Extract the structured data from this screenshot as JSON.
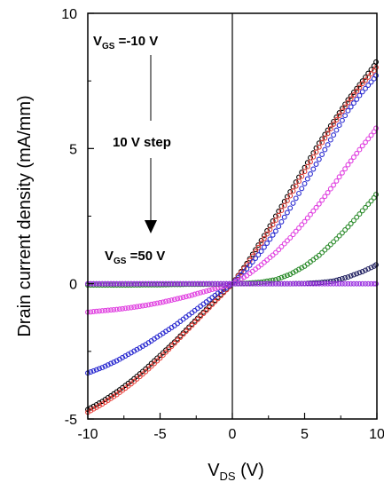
{
  "chart_data": {
    "type": "scatter",
    "title": "",
    "xlabel": "V",
    "xlabel_sub": "DS",
    "xlabel_unit": " (V)",
    "ylabel": "Drain current density (mA/mm)",
    "xlim": [
      -10,
      10
    ],
    "ylim": [
      -5,
      10
    ],
    "xticks": [
      -10,
      -5,
      0,
      5,
      10
    ],
    "xtick_labels": [
      "-10",
      "-5",
      "0",
      "5",
      "10"
    ],
    "yticks": [
      -5,
      0,
      5,
      10
    ],
    "ytick_labels": [
      "-5",
      "0",
      "5",
      "10"
    ],
    "grid": false,
    "zero_lines": true,
    "annotations": {
      "top_label": {
        "main": "V",
        "sub": "GS",
        "rest": " =-10 V"
      },
      "step_label": "10 V step",
      "bottom_label": {
        "main": "V",
        "sub": "GS",
        "rest": " =50 V"
      }
    },
    "series": [
      {
        "color": "#000000",
        "x": [
          -10,
          -9,
          -8,
          -7,
          -6,
          -5,
          -4,
          -3,
          -2,
          -1,
          0,
          1,
          2,
          3,
          4,
          5,
          6,
          7,
          8,
          9,
          10
        ],
        "y": [
          -4.65,
          -4.35,
          -4.0,
          -3.6,
          -3.15,
          -2.65,
          -2.15,
          -1.6,
          -1.05,
          -0.5,
          0,
          0.75,
          1.6,
          2.5,
          3.4,
          4.3,
          5.2,
          6.0,
          6.8,
          7.5,
          8.2
        ]
      },
      {
        "color": "#e8403a",
        "x": [
          -10,
          -9,
          -8,
          -7,
          -6,
          -5,
          -4,
          -3,
          -2,
          -1,
          0,
          1,
          2,
          3,
          4,
          5,
          6,
          7,
          8,
          9,
          10
        ],
        "y": [
          -4.75,
          -4.45,
          -4.1,
          -3.7,
          -3.25,
          -2.75,
          -2.2,
          -1.65,
          -1.1,
          -0.55,
          0,
          0.7,
          1.5,
          2.35,
          3.25,
          4.15,
          5.05,
          5.9,
          6.7,
          7.4,
          8.0
        ]
      },
      {
        "color": "#2a2ad0",
        "x": [
          -10,
          -9,
          -8,
          -7,
          -6,
          -5,
          -4,
          -3,
          -2,
          -1,
          0,
          1,
          2,
          3,
          4,
          5,
          6,
          7,
          8,
          9,
          10
        ],
        "y": [
          -3.3,
          -3.1,
          -2.85,
          -2.55,
          -2.25,
          -1.9,
          -1.55,
          -1.15,
          -0.75,
          -0.35,
          0,
          0.55,
          1.2,
          1.95,
          2.8,
          3.7,
          4.6,
          5.5,
          6.4,
          7.1,
          7.7
        ]
      },
      {
        "color": "#e040e0",
        "x": [
          -10,
          -9,
          -8,
          -7,
          -6,
          -5,
          -4,
          -3,
          -2,
          -1,
          0,
          1,
          2,
          3,
          4,
          5,
          6,
          7,
          8,
          9,
          10
        ],
        "y": [
          -1.05,
          -1.0,
          -0.95,
          -0.88,
          -0.8,
          -0.7,
          -0.58,
          -0.45,
          -0.3,
          -0.15,
          0,
          0.3,
          0.7,
          1.15,
          1.7,
          2.3,
          2.95,
          3.65,
          4.4,
          5.1,
          5.75
        ]
      },
      {
        "color": "#2a8a2a",
        "x": [
          -10,
          -9,
          -8,
          -7,
          -6,
          -5,
          -4,
          -3,
          -2,
          -1,
          0,
          1,
          2,
          3,
          4,
          5,
          6,
          7,
          8,
          9,
          10
        ],
        "y": [
          -0.05,
          -0.05,
          -0.05,
          -0.05,
          -0.04,
          -0.04,
          -0.03,
          -0.02,
          -0.02,
          -0.01,
          0,
          0.02,
          0.06,
          0.15,
          0.35,
          0.65,
          1.05,
          1.55,
          2.1,
          2.7,
          3.3
        ]
      },
      {
        "color": "#202060",
        "x": [
          -10,
          -9,
          -8,
          -7,
          -6,
          -5,
          -4,
          -3,
          -2,
          -1,
          0,
          1,
          2,
          3,
          4,
          5,
          6,
          7,
          8,
          9,
          10
        ],
        "y": [
          0,
          0,
          0,
          0,
          0,
          0,
          0,
          0,
          0,
          0,
          0,
          0,
          0,
          0,
          0,
          0.01,
          0.04,
          0.1,
          0.25,
          0.45,
          0.7
        ]
      },
      {
        "color": "#9a30e0",
        "x": [
          -10,
          -9,
          -8,
          -7,
          -6,
          -5,
          -4,
          -3,
          -2,
          -1,
          0,
          1,
          2,
          3,
          4,
          5,
          6,
          7,
          8,
          9,
          10
        ],
        "y": [
          0,
          0,
          0,
          0,
          0,
          0,
          0,
          0,
          0,
          0,
          0,
          0,
          0,
          0,
          0,
          0,
          0,
          0,
          0,
          0,
          0
        ]
      }
    ]
  }
}
